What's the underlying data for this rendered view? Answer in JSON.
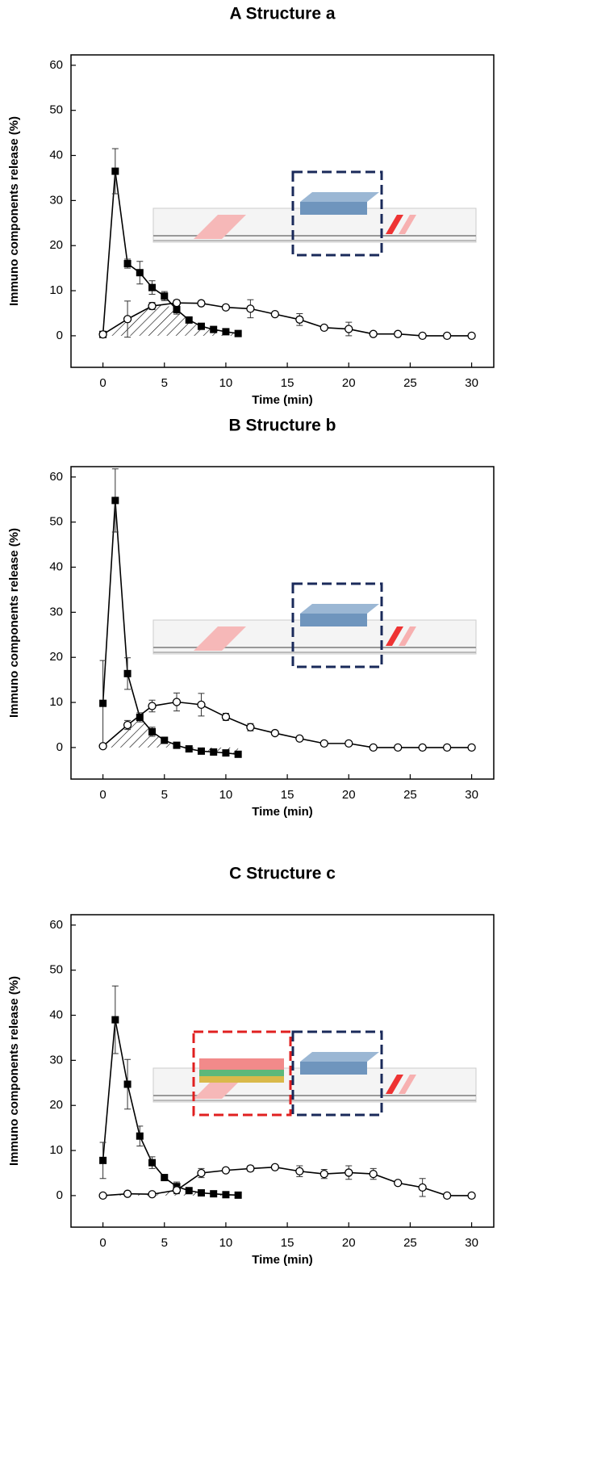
{
  "chart_data": [
    {
      "type": "line",
      "title": "A Structure a",
      "xlabel": "Time (min)",
      "ylabel": "Immuno components release (%)",
      "xlim": [
        -2.6,
        31.8
      ],
      "ylim": [
        -7,
        62.3
      ],
      "xticks": [
        0,
        5,
        10,
        15,
        20,
        25,
        30
      ],
      "yticks": [
        0,
        10,
        20,
        30,
        40,
        50,
        60
      ],
      "series": [
        {
          "marker": "square",
          "color": "#000000",
          "x": [
            0,
            1,
            2,
            3,
            4,
            5,
            6,
            7,
            8,
            9,
            10,
            11
          ],
          "values": [
            0.3,
            36.5,
            16,
            14,
            10.7,
            8.8,
            5.8,
            3.5,
            2.1,
            1.4,
            0.9,
            0.5
          ],
          "errors": [
            0.3,
            5,
            1,
            2.5,
            1.5,
            1,
            1,
            0.4,
            0.3,
            0.3,
            0.3,
            0.3
          ]
        },
        {
          "marker": "circle",
          "color": "#000000",
          "x": [
            0,
            2,
            4,
            6,
            8,
            10,
            12,
            14,
            16,
            18,
            20,
            22,
            24,
            26,
            28,
            30
          ],
          "values": [
            0.3,
            3.7,
            6.6,
            7.3,
            7.2,
            6.3,
            6,
            4.8,
            3.6,
            1.8,
            1.5,
            0.4,
            0.4,
            0,
            0,
            0
          ],
          "errors": [
            0.3,
            4,
            0.8,
            0.6,
            0.4,
            0.5,
            2,
            0.4,
            1.3,
            0.4,
            1.5,
            0.3,
            0.3,
            0.2,
            0.2,
            0.2
          ]
        }
      ]
    },
    {
      "type": "line",
      "title": "B Structure b",
      "xlabel": "Time (min)",
      "ylabel": "Immuno components release (%)",
      "xlim": [
        -2.6,
        31.8
      ],
      "ylim": [
        -7,
        62.3
      ],
      "xticks": [
        0,
        5,
        10,
        15,
        20,
        25,
        30
      ],
      "yticks": [
        0,
        10,
        20,
        30,
        40,
        50,
        60
      ],
      "series": [
        {
          "marker": "square",
          "color": "#000000",
          "x": [
            0,
            1,
            2,
            3,
            4,
            5,
            6,
            7,
            8,
            9,
            10,
            11
          ],
          "values": [
            9.8,
            54.8,
            16.4,
            6.7,
            3.5,
            1.6,
            0.5,
            -0.3,
            -0.8,
            -1,
            -1.2,
            -1.5
          ],
          "errors": [
            9.5,
            7,
            3.5,
            1,
            1,
            0.4,
            0.3,
            0.3,
            0.3,
            0.3,
            0.3,
            0.3
          ]
        },
        {
          "marker": "circle",
          "color": "#000000",
          "x": [
            0,
            2,
            4,
            6,
            8,
            10,
            12,
            14,
            16,
            18,
            20,
            22,
            24,
            26,
            28,
            30
          ],
          "values": [
            0.3,
            5,
            9.2,
            10.1,
            9.5,
            6.8,
            4.5,
            3.2,
            2,
            0.9,
            0.9,
            0,
            0,
            0,
            0,
            0
          ],
          "errors": [
            0.3,
            1,
            1.3,
            2,
            2.5,
            0.8,
            0.8,
            0.4,
            0.3,
            0.3,
            0.3,
            0.2,
            0.2,
            0.2,
            0.2,
            0.2
          ]
        }
      ]
    },
    {
      "type": "line",
      "title": "C Structure c",
      "xlabel": "Time (min)",
      "ylabel": "Immuno components release (%)",
      "xlim": [
        -2.6,
        31.8
      ],
      "ylim": [
        -7,
        62.3
      ],
      "xticks": [
        0,
        5,
        10,
        15,
        20,
        25,
        30
      ],
      "yticks": [
        0,
        10,
        20,
        30,
        40,
        50,
        60
      ],
      "series": [
        {
          "marker": "square",
          "color": "#000000",
          "x": [
            0,
            1,
            2,
            3,
            4,
            5,
            6,
            7,
            8,
            9,
            10,
            11
          ],
          "values": [
            7.8,
            39,
            24.7,
            13.2,
            7.3,
            4,
            2,
            1.1,
            0.6,
            0.4,
            0.2,
            0.1
          ],
          "errors": [
            4,
            7.5,
            5.5,
            2.2,
            1.3,
            0.5,
            1,
            0.4,
            0.3,
            0.3,
            0.3,
            0.3
          ]
        },
        {
          "marker": "circle",
          "color": "#000000",
          "x": [
            0,
            2,
            4,
            6,
            8,
            10,
            12,
            14,
            16,
            18,
            20,
            22,
            24,
            26,
            28,
            30
          ],
          "values": [
            0,
            0.4,
            0.3,
            1.2,
            5,
            5.6,
            6,
            6.3,
            5.4,
            4.8,
            5.1,
            4.8,
            2.8,
            1.8,
            0,
            0
          ],
          "errors": [
            0.2,
            0.3,
            0.3,
            0.8,
            1,
            0.5,
            0.6,
            0.4,
            1.2,
            1,
            1.5,
            1.2,
            0.4,
            2,
            0.2,
            0.2
          ]
        }
      ]
    }
  ]
}
